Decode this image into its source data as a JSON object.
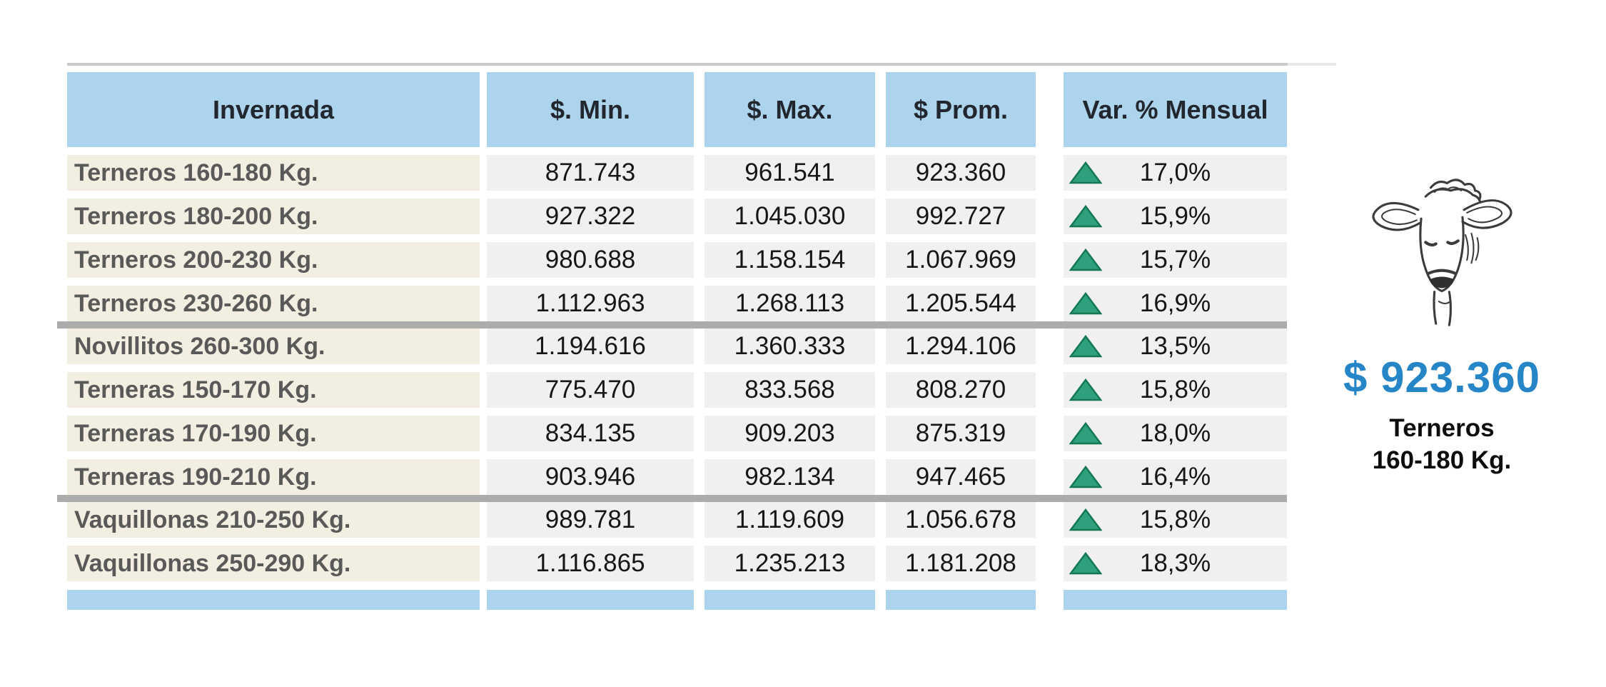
{
  "colors": {
    "header_bg": "#acd4ed",
    "label_bg": "#f2efe2",
    "value_bg": "#f0f0f0",
    "divider": "#acacac",
    "up_triangle_fill": "#2fa07e",
    "up_triangle_stroke": "#147852",
    "highlight_price_blue": "#2585c7",
    "label_text": "#595959"
  },
  "table": {
    "headers": [
      "Invernada",
      "$. Min.",
      "$. Max.",
      "$ Prom.",
      "Var. % Mensual"
    ],
    "rows": [
      {
        "label": "Terneros 160-180 Kg.",
        "min": "871.743",
        "max": "961.541",
        "prom": "923.360",
        "var": "17,0%",
        "direction": "up",
        "divider_after": false
      },
      {
        "label": "Terneros 180-200 Kg.",
        "min": "927.322",
        "max": "1.045.030",
        "prom": "992.727",
        "var": "15,9%",
        "direction": "up",
        "divider_after": false
      },
      {
        "label": "Terneros 200-230 Kg.",
        "min": "980.688",
        "max": "1.158.154",
        "prom": "1.067.969",
        "var": "15,7%",
        "direction": "up",
        "divider_after": false
      },
      {
        "label": "Terneros 230-260 Kg.",
        "min": "1.112.963",
        "max": "1.268.113",
        "prom": "1.205.544",
        "var": "16,9%",
        "direction": "up",
        "divider_after": true
      },
      {
        "label": "Novillitos 260-300 Kg.",
        "min": "1.194.616",
        "max": "1.360.333",
        "prom": "1.294.106",
        "var": "13,5%",
        "direction": "up",
        "divider_after": false
      },
      {
        "label": "Terneras 150-170 Kg.",
        "min": "775.470",
        "max": "833.568",
        "prom": "808.270",
        "var": "15,8%",
        "direction": "up",
        "divider_after": false
      },
      {
        "label": "Terneras 170-190 Kg.",
        "min": "834.135",
        "max": "909.203",
        "prom": "875.319",
        "var": "18,0%",
        "direction": "up",
        "divider_after": false
      },
      {
        "label": "Terneras 190-210 Kg.",
        "min": "903.946",
        "max": "982.134",
        "prom": "947.465",
        "var": "16,4%",
        "direction": "up",
        "divider_after": true
      },
      {
        "label": "Vaquillonas 210-250 Kg.",
        "min": "989.781",
        "max": "1.119.609",
        "prom": "1.056.678",
        "var": "15,8%",
        "direction": "up",
        "divider_after": false
      },
      {
        "label": "Vaquillonas 250-290 Kg.",
        "min": "1.116.865",
        "max": "1.235.213",
        "prom": "1.181.208",
        "var": "18,3%",
        "direction": "up",
        "divider_after": false
      }
    ]
  },
  "highlight": {
    "price": "$ 923.360",
    "category_line1": "Terneros",
    "category_line2": "160-180 Kg."
  },
  "chart_data": {
    "type": "table",
    "title": "Invernada",
    "columns": [
      "Invernada",
      "$. Min.",
      "$. Max.",
      "$ Prom.",
      "Var. % Mensual"
    ],
    "rows": [
      [
        "Terneros 160-180 Kg.",
        871743,
        961541,
        923360,
        "17,0%"
      ],
      [
        "Terneros 180-200 Kg.",
        927322,
        1045030,
        992727,
        "15,9%"
      ],
      [
        "Terneros 200-230 Kg.",
        980688,
        1158154,
        1067969,
        "15,7%"
      ],
      [
        "Terneros 230-260 Kg.",
        1112963,
        1268113,
        1205544,
        "16,9%"
      ],
      [
        "Novillitos 260-300 Kg.",
        1194616,
        1360333,
        1294106,
        "13,5%"
      ],
      [
        "Terneras 150-170 Kg.",
        775470,
        833568,
        808270,
        "15,8%"
      ],
      [
        "Terneras 170-190 Kg.",
        834135,
        909203,
        875319,
        "18,0%"
      ],
      [
        "Terneras 190-210 Kg.",
        903946,
        982134,
        947465,
        "16,4%"
      ],
      [
        "Vaquillonas 210-250 Kg.",
        989781,
        1119609,
        1056678,
        "15,8%"
      ],
      [
        "Vaquillonas 250-290 Kg.",
        1116865,
        1235213,
        1181208,
        "18,3%"
      ]
    ],
    "notes": "All monthly variations are positive (green up triangles). Highlighted value: Terneros 160-180 Kg. average price $ 923.360."
  }
}
